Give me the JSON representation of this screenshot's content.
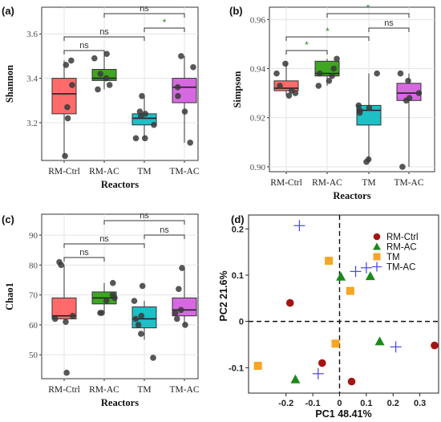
{
  "chart_data": [
    {
      "panel": "(a)",
      "type": "box",
      "ylabel": "Shannon",
      "xlabel": "Reactors",
      "categories": [
        "RM-Ctrl",
        "RM-AC",
        "TM",
        "TM-AC"
      ],
      "colors": [
        "#ff6b6b",
        "#3fa522",
        "#1fbfc6",
        "#d669e0"
      ],
      "ylim": [
        3.03,
        3.72
      ],
      "yticks": [
        3.2,
        3.4,
        3.6
      ],
      "boxes": [
        {
          "min": 3.05,
          "q1": 3.24,
          "median": 3.33,
          "q3": 3.4,
          "max": 3.48
        },
        {
          "min": 3.35,
          "q1": 3.39,
          "median": 3.4,
          "q3": 3.44,
          "max": 3.51
        },
        {
          "min": 3.13,
          "q1": 3.19,
          "median": 3.22,
          "q3": 3.24,
          "max": 3.32
        },
        {
          "min": 3.11,
          "q1": 3.29,
          "median": 3.36,
          "q3": 3.4,
          "max": 3.5
        }
      ],
      "points": [
        [
          3.48,
          3.46,
          3.37,
          3.27,
          3.22,
          3.05
        ],
        [
          3.51,
          3.49,
          3.42,
          3.4,
          3.37,
          3.35
        ],
        [
          3.32,
          3.25,
          3.24,
          3.23,
          3.19,
          3.13,
          3.13
        ],
        [
          3.5,
          3.45,
          3.36,
          3.32,
          3.25,
          3.11
        ]
      ],
      "comparisons": [
        {
          "a": 0,
          "b": 1,
          "label": "ns"
        },
        {
          "a": 0,
          "b": 2,
          "label": "ns"
        },
        {
          "a": 2,
          "b": 3,
          "label": "*"
        },
        {
          "a": 1,
          "b": 3,
          "label": "ns"
        }
      ]
    },
    {
      "panel": "(b)",
      "type": "box",
      "ylabel": "Simpson",
      "xlabel": "Reactors",
      "categories": [
        "RM-Ctrl",
        "RM-AC",
        "TM",
        "TM-AC"
      ],
      "colors": [
        "#ff6b6b",
        "#3fa522",
        "#1fbfc6",
        "#d669e0"
      ],
      "ylim": [
        0.898,
        0.965
      ],
      "yticks": [
        0.9,
        0.92,
        0.94,
        0.96
      ],
      "boxes": [
        {
          "min": 0.929,
          "q1": 0.931,
          "median": 0.932,
          "q3": 0.935,
          "max": 0.942
        },
        {
          "min": 0.933,
          "q1": 0.937,
          "median": 0.938,
          "q3": 0.943,
          "max": 0.944
        },
        {
          "min": 0.902,
          "q1": 0.917,
          "median": 0.923,
          "q3": 0.925,
          "max": 0.938
        },
        {
          "min": 0.9,
          "q1": 0.927,
          "median": 0.93,
          "q3": 0.934,
          "max": 0.938
        }
      ],
      "points": [
        [
          0.942,
          0.938,
          0.933,
          0.931,
          0.93,
          0.929
        ],
        [
          0.944,
          0.94,
          0.938,
          0.937,
          0.935,
          0.933
        ],
        [
          0.938,
          0.925,
          0.924,
          0.923,
          0.922,
          0.903,
          0.902
        ],
        [
          0.938,
          0.935,
          0.93,
          0.928,
          0.927,
          0.9
        ]
      ],
      "comparisons": [
        {
          "a": 0,
          "b": 1,
          "label": "*"
        },
        {
          "a": 0,
          "b": 2,
          "label": "*"
        },
        {
          "a": 2,
          "b": 3,
          "label": "ns"
        },
        {
          "a": 1,
          "b": 3,
          "label": "*"
        }
      ]
    },
    {
      "panel": "(c)",
      "type": "box",
      "ylabel": "Chao1",
      "xlabel": "Reactors",
      "categories": [
        "RM-Ctrl",
        "RM-AC",
        "TM",
        "TM-AC"
      ],
      "colors": [
        "#ff6b6b",
        "#3fa522",
        "#1fbfc6",
        "#d669e0"
      ],
      "ylim": [
        42,
        97
      ],
      "yticks": [
        50,
        60,
        70,
        80,
        90
      ],
      "boxes": [
        {
          "min": 62,
          "q1": 62,
          "median": 63,
          "q3": 69,
          "max": 80
        },
        {
          "min": 64,
          "q1": 67,
          "median": 69,
          "q3": 71,
          "max": 74
        },
        {
          "min": 55,
          "q1": 59,
          "median": 62,
          "q3": 66,
          "max": 68
        },
        {
          "min": 60,
          "q1": 63,
          "median": 65,
          "q3": 69,
          "max": 79
        }
      ],
      "points": [
        [
          81,
          80,
          63,
          62,
          61,
          44
        ],
        [
          74,
          70,
          69,
          68,
          64,
          64
        ],
        [
          73,
          68,
          63,
          62,
          60,
          57,
          49
        ],
        [
          79,
          72,
          65,
          64,
          62,
          60
        ]
      ],
      "comparisons": [
        {
          "a": 0,
          "b": 1,
          "label": "ns"
        },
        {
          "a": 0,
          "b": 2,
          "label": "ns"
        },
        {
          "a": 2,
          "b": 3,
          "label": "ns"
        },
        {
          "a": 1,
          "b": 3,
          "label": "ns"
        }
      ]
    },
    {
      "panel": "(d)",
      "type": "scatter",
      "xlabel": "PC1   48.41%",
      "ylabel": "PC2   21.6%",
      "xlim": [
        -0.34,
        0.37
      ],
      "ylim": [
        -0.155,
        0.23
      ],
      "xticks": [
        -0.2,
        -0.1,
        0,
        0.1,
        0.2,
        0.3
      ],
      "ytick_labels": [
        "-0.1",
        "0",
        "0.1",
        "0.2"
      ],
      "yticks": [
        -0.1,
        0,
        0.1,
        0.2
      ],
      "series": [
        {
          "name": "RM-Ctrl",
          "marker": "circle",
          "color": "#a31515",
          "points": [
            [
              -0.185,
              0.04
            ],
            [
              -0.065,
              -0.09
            ],
            [
              0.045,
              -0.13
            ],
            [
              0.355,
              -0.052
            ]
          ]
        },
        {
          "name": "RM-AC",
          "marker": "triangle",
          "color": "#1b8a1b",
          "points": [
            [
              0.005,
              0.097
            ],
            [
              0.115,
              0.098
            ],
            [
              0.15,
              -0.043
            ],
            [
              -0.165,
              -0.125
            ]
          ]
        },
        {
          "name": "TM",
          "marker": "square",
          "color": "#f5a623",
          "points": [
            [
              -0.04,
              0.131
            ],
            [
              0.04,
              0.066
            ],
            [
              -0.015,
              -0.048
            ],
            [
              -0.305,
              -0.096
            ]
          ]
        },
        {
          "name": "TM-AC",
          "marker": "plus",
          "color": "#4f4fe8",
          "points": [
            [
              -0.15,
              0.207
            ],
            [
              0.06,
              0.108
            ],
            [
              0.1,
              0.116
            ],
            [
              0.21,
              -0.055
            ],
            [
              -0.08,
              -0.113
            ]
          ]
        }
      ]
    }
  ]
}
